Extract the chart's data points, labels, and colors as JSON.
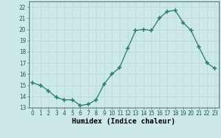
{
  "x": [
    0,
    1,
    2,
    3,
    4,
    5,
    6,
    7,
    8,
    9,
    10,
    11,
    12,
    13,
    14,
    15,
    16,
    17,
    18,
    19,
    20,
    21,
    22,
    23
  ],
  "y": [
    15.2,
    15.0,
    14.5,
    13.9,
    13.7,
    13.7,
    13.2,
    13.3,
    13.7,
    15.1,
    16.0,
    16.6,
    18.3,
    19.9,
    20.0,
    19.9,
    21.0,
    21.6,
    21.7,
    20.6,
    19.9,
    18.4,
    17.0,
    16.5
  ],
  "line_color": "#2d7f6e",
  "marker": "+",
  "markersize": 4,
  "markeredgewidth": 1.2,
  "linewidth": 1.0,
  "bg_color": "#cce8e8",
  "grid_color": "#b8d8d8",
  "xlabel": "Humidex (Indice chaleur)",
  "ylim": [
    13,
    22.5
  ],
  "xlim": [
    -0.5,
    23.5
  ],
  "yticks": [
    13,
    14,
    15,
    16,
    17,
    18,
    19,
    20,
    21,
    22
  ],
  "xticks": [
    0,
    1,
    2,
    3,
    4,
    5,
    6,
    7,
    8,
    9,
    10,
    11,
    12,
    13,
    14,
    15,
    16,
    17,
    18,
    19,
    20,
    21,
    22,
    23
  ],
  "tick_fontsize": 5.5,
  "label_fontsize": 7.5
}
